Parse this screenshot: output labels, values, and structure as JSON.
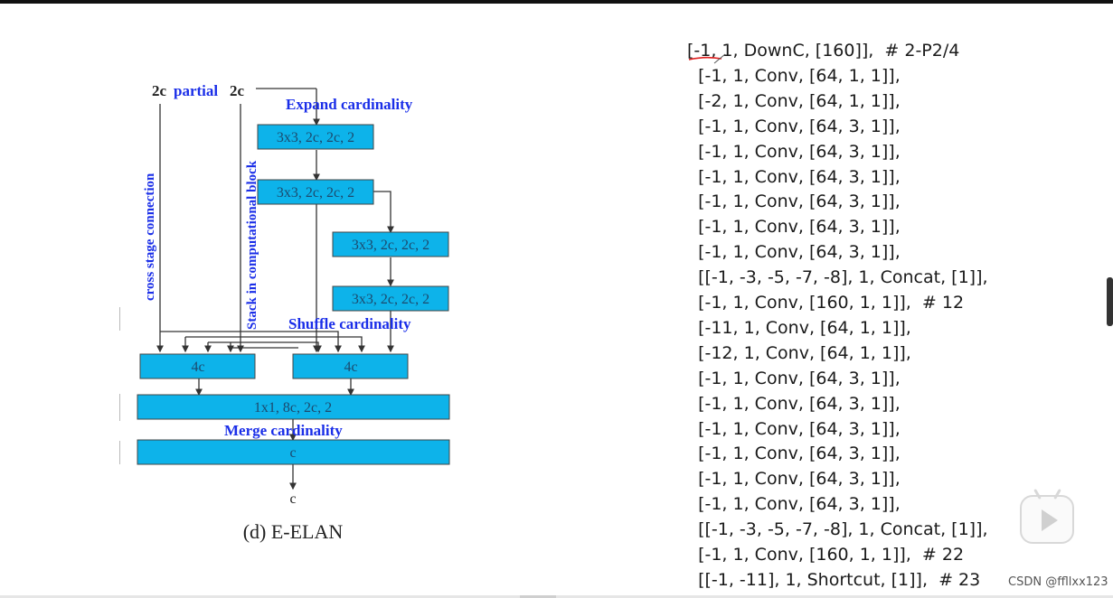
{
  "diagram": {
    "top_label": {
      "left": "2c",
      "partial": "partial",
      "right": "2c"
    },
    "expand_label": "Expand cardinality",
    "shuffle_label": "Shuffle cardinality",
    "merge_label": "Merge cardinality",
    "cross_stage_label": "cross stage connection",
    "stack_label": "Stack in computational block",
    "boxes": {
      "conv1": "3x3, 2c, 2c, 2",
      "conv2": "3x3, 2c, 2c, 2",
      "conv3": "3x3, 2c, 2c, 2",
      "conv4": "3x3, 2c, 2c, 2",
      "concat_left": "4c",
      "concat_right": "4c",
      "merge": "1x1, 8c, 2c, 2",
      "out": "c"
    },
    "output_label": "c",
    "caption": "(d) E-ELAN",
    "box_color": "#0db3ea",
    "label_color": "#1a2ee8"
  },
  "code_lines": [
    "[-1, 1, DownC, [160]],  # 2-P2/4",
    "  [-1, 1, Conv, [64, 1, 1]],",
    "  [-2, 1, Conv, [64, 1, 1]],",
    "  [-1, 1, Conv, [64, 3, 1]],",
    "  [-1, 1, Conv, [64, 3, 1]],",
    "  [-1, 1, Conv, [64, 3, 1]],",
    "  [-1, 1, Conv, [64, 3, 1]],",
    "  [-1, 1, Conv, [64, 3, 1]],",
    "  [-1, 1, Conv, [64, 3, 1]],",
    "  [[-1, -3, -5, -7, -8], 1, Concat, [1]],",
    "  [-1, 1, Conv, [160, 1, 1]],  # 12",
    "  [-11, 1, Conv, [64, 1, 1]],",
    "  [-12, 1, Conv, [64, 1, 1]],",
    "  [-1, 1, Conv, [64, 3, 1]],",
    "  [-1, 1, Conv, [64, 3, 1]],",
    "  [-1, 1, Conv, [64, 3, 1]],",
    "  [-1, 1, Conv, [64, 3, 1]],",
    "  [-1, 1, Conv, [64, 3, 1]],",
    "  [-1, 1, Conv, [64, 3, 1]],",
    "  [[-1, -3, -5, -7, -8], 1, Concat, [1]],",
    "  [-1, 1, Conv, [160, 1, 1]],  # 22",
    "  [[-1, -11], 1, Shortcut, [1]],  # 23"
  ],
  "watermark": "CSDN @ffllxx123"
}
